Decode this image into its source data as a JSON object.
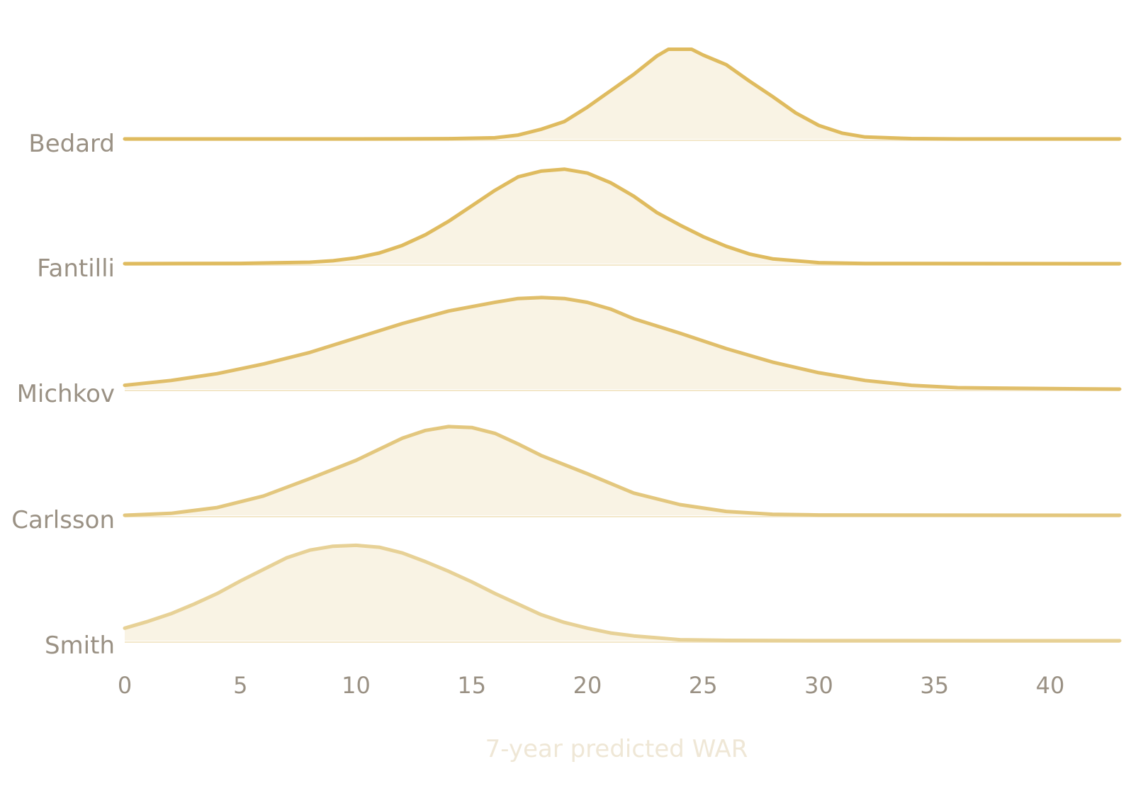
{
  "chart_data": {
    "type": "ridgeline",
    "xlabel": "7-year predicted WAR",
    "xlim": [
      0,
      43
    ],
    "xticks": [
      0,
      5,
      10,
      15,
      20,
      25,
      30,
      35,
      40
    ],
    "grid": false,
    "legend": "none",
    "colors": {
      "fill": "#f9f3e4",
      "baseline_fill": "#f3e7c9",
      "label": "#9a9184",
      "axis_title": "#efe7d6"
    },
    "series": [
      {
        "name": "Bedard",
        "color": "#dfbb5f",
        "points": [
          [
            0,
            0
          ],
          [
            10,
            0
          ],
          [
            12,
            0.001
          ],
          [
            14,
            0.003
          ],
          [
            16,
            0.012
          ],
          [
            17,
            0.04
          ],
          [
            18,
            0.1
          ],
          [
            19,
            0.18
          ],
          [
            20,
            0.33
          ],
          [
            21,
            0.5
          ],
          [
            22,
            0.67
          ],
          [
            23,
            0.86
          ],
          [
            23.5,
            0.93
          ],
          [
            24.5,
            0.93
          ],
          [
            25,
            0.87
          ],
          [
            26,
            0.77
          ],
          [
            27,
            0.6
          ],
          [
            28,
            0.44
          ],
          [
            29,
            0.27
          ],
          [
            30,
            0.14
          ],
          [
            31,
            0.06
          ],
          [
            32,
            0.02
          ],
          [
            34,
            0.004
          ],
          [
            36,
            0
          ],
          [
            43,
            0
          ]
        ]
      },
      {
        "name": "Fantilli",
        "color": "#dfbb5f",
        "points": [
          [
            0,
            0
          ],
          [
            5,
            0.003
          ],
          [
            8,
            0.015
          ],
          [
            9,
            0.03
          ],
          [
            10,
            0.06
          ],
          [
            11,
            0.11
          ],
          [
            12,
            0.19
          ],
          [
            13,
            0.3
          ],
          [
            14,
            0.44
          ],
          [
            15,
            0.6
          ],
          [
            16,
            0.76
          ],
          [
            17,
            0.9
          ],
          [
            18,
            0.96
          ],
          [
            19,
            0.98
          ],
          [
            20,
            0.94
          ],
          [
            21,
            0.84
          ],
          [
            22,
            0.7
          ],
          [
            23,
            0.53
          ],
          [
            24,
            0.4
          ],
          [
            25,
            0.28
          ],
          [
            26,
            0.18
          ],
          [
            27,
            0.1
          ],
          [
            28,
            0.05
          ],
          [
            30,
            0.01
          ],
          [
            32,
            0.002
          ],
          [
            43,
            0
          ]
        ]
      },
      {
        "name": "Michkov",
        "color": "#e0be6a",
        "points": [
          [
            0,
            0.04
          ],
          [
            2,
            0.09
          ],
          [
            4,
            0.16
          ],
          [
            6,
            0.26
          ],
          [
            8,
            0.38
          ],
          [
            10,
            0.53
          ],
          [
            12,
            0.68
          ],
          [
            14,
            0.81
          ],
          [
            16,
            0.9
          ],
          [
            17,
            0.94
          ],
          [
            18,
            0.95
          ],
          [
            19,
            0.94
          ],
          [
            20,
            0.9
          ],
          [
            21,
            0.83
          ],
          [
            22,
            0.73
          ],
          [
            24,
            0.58
          ],
          [
            26,
            0.42
          ],
          [
            28,
            0.28
          ],
          [
            30,
            0.17
          ],
          [
            32,
            0.09
          ],
          [
            34,
            0.04
          ],
          [
            36,
            0.015
          ],
          [
            40,
            0.005
          ],
          [
            43,
            0
          ]
        ]
      },
      {
        "name": "Carlsson",
        "color": "#e3c77e",
        "points": [
          [
            0,
            0
          ],
          [
            2,
            0.02
          ],
          [
            4,
            0.08
          ],
          [
            6,
            0.2
          ],
          [
            8,
            0.38
          ],
          [
            10,
            0.57
          ],
          [
            12,
            0.8
          ],
          [
            13,
            0.88
          ],
          [
            14,
            0.92
          ],
          [
            15,
            0.91
          ],
          [
            16,
            0.85
          ],
          [
            17,
            0.74
          ],
          [
            18,
            0.62
          ],
          [
            20,
            0.43
          ],
          [
            22,
            0.23
          ],
          [
            24,
            0.11
          ],
          [
            26,
            0.04
          ],
          [
            28,
            0.01
          ],
          [
            30,
            0.003
          ],
          [
            43,
            0
          ]
        ]
      },
      {
        "name": "Smith",
        "color": "#e7d196",
        "points": [
          [
            0,
            0.13
          ],
          [
            1,
            0.2
          ],
          [
            2,
            0.28
          ],
          [
            3,
            0.38
          ],
          [
            4,
            0.49
          ],
          [
            5,
            0.62
          ],
          [
            6,
            0.74
          ],
          [
            7,
            0.86
          ],
          [
            8,
            0.94
          ],
          [
            9,
            0.98
          ],
          [
            10,
            0.99
          ],
          [
            11,
            0.97
          ],
          [
            12,
            0.91
          ],
          [
            13,
            0.82
          ],
          [
            14,
            0.72
          ],
          [
            15,
            0.61
          ],
          [
            16,
            0.49
          ],
          [
            17,
            0.38
          ],
          [
            18,
            0.27
          ],
          [
            19,
            0.19
          ],
          [
            20,
            0.13
          ],
          [
            21,
            0.08
          ],
          [
            22,
            0.05
          ],
          [
            23,
            0.03
          ],
          [
            24,
            0.01
          ],
          [
            26,
            0.004
          ],
          [
            30,
            0.001
          ],
          [
            43,
            0
          ]
        ]
      }
    ]
  }
}
